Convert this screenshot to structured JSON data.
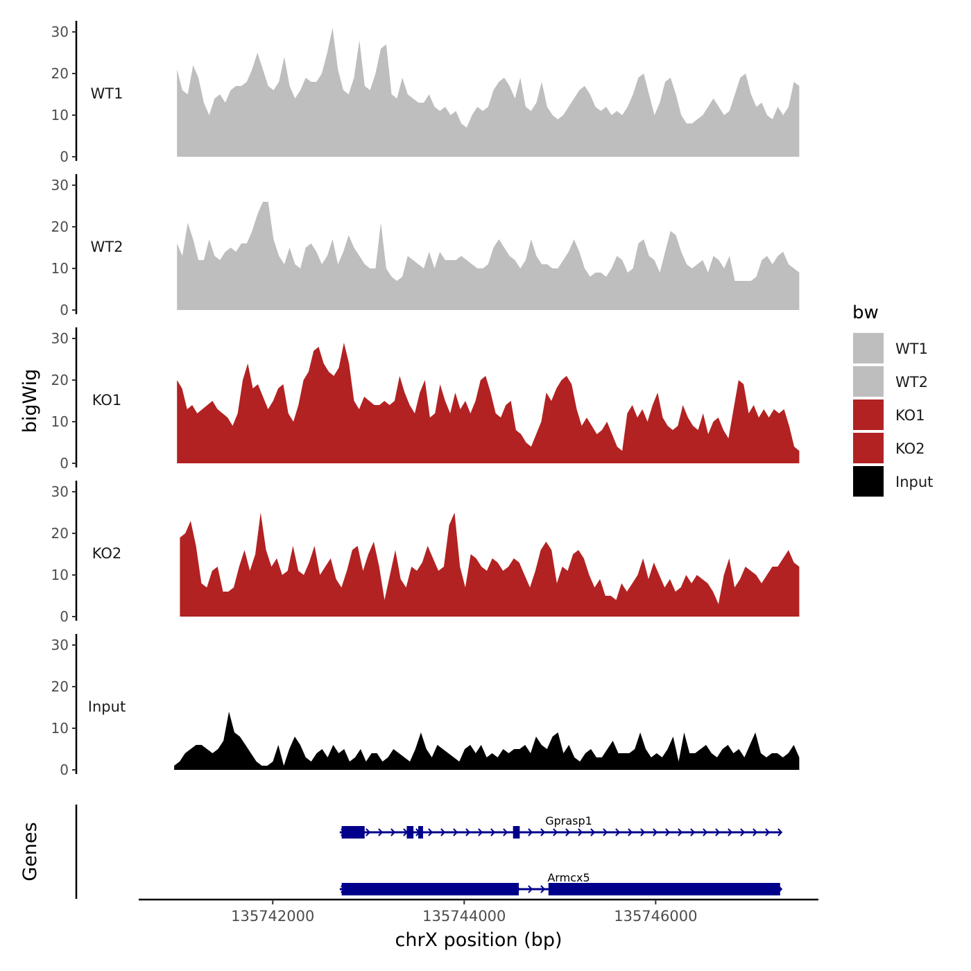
{
  "chart_data": {
    "type": "area",
    "chromosome": "chrX",
    "xlabel": "chrX position (bp)",
    "ylabel": "bigWig",
    "genes_label": "Genes",
    "xlim": [
      135740600,
      135747700
    ],
    "x_ticks": [
      135742000,
      135744000,
      135746000
    ],
    "x_tick_labels": [
      "135742000",
      "135744000",
      "135746000"
    ],
    "ylim": [
      0,
      32
    ],
    "y_ticks": [
      0,
      10,
      20,
      30
    ],
    "y_tick_labels": [
      "0",
      "10",
      "20",
      "30"
    ],
    "legend_title": "bw",
    "legend_position": "right",
    "tracks": [
      {
        "name": "WT1",
        "color": "#bebebe",
        "x_start": 135741000,
        "x_end": 135747500,
        "values": [
          21,
          16,
          15,
          22,
          19,
          13,
          10,
          14,
          15,
          13,
          16,
          17,
          17,
          18,
          21,
          25,
          21,
          17,
          16,
          18,
          24,
          17,
          14,
          16,
          19,
          18,
          18,
          20,
          25,
          31,
          21,
          16,
          15,
          19,
          28,
          17,
          16,
          20,
          26,
          27,
          15,
          14,
          19,
          15,
          14,
          13,
          13,
          15,
          12,
          11,
          12,
          10,
          11,
          8,
          7,
          10,
          12,
          11,
          12,
          16,
          18,
          19,
          17,
          14,
          19,
          12,
          11,
          13,
          18,
          12,
          10,
          9,
          10,
          12,
          14,
          16,
          17,
          15,
          12,
          11,
          12,
          10,
          11,
          10,
          12,
          15,
          19,
          20,
          15,
          10,
          13,
          18,
          19,
          15,
          10,
          8,
          8,
          9,
          10,
          12,
          14,
          12,
          10,
          11,
          15,
          19,
          20,
          15,
          12,
          13,
          10,
          9,
          12,
          10,
          12,
          18,
          17
        ]
      },
      {
        "name": "WT2",
        "color": "#bebebe",
        "x_start": 135741000,
        "x_end": 135747500,
        "values": [
          16,
          13,
          21,
          17,
          12,
          12,
          17,
          13,
          12,
          14,
          15,
          14,
          16,
          16,
          19,
          23,
          26,
          26,
          17,
          13,
          11,
          15,
          11,
          10,
          15,
          16,
          14,
          11,
          13,
          17,
          11,
          14,
          18,
          15,
          13,
          11,
          10,
          10,
          21,
          10,
          8,
          7,
          8,
          13,
          12,
          11,
          10,
          14,
          10,
          14,
          12,
          12,
          12,
          13,
          12,
          11,
          10,
          10,
          11,
          15,
          17,
          15,
          13,
          12,
          10,
          12,
          17,
          13,
          11,
          11,
          10,
          10,
          12,
          14,
          17,
          14,
          10,
          8,
          9,
          9,
          8,
          10,
          13,
          12,
          9,
          10,
          16,
          17,
          13,
          12,
          9,
          14,
          19,
          18,
          14,
          11,
          10,
          11,
          12,
          9,
          13,
          12,
          10,
          13,
          7,
          7,
          7,
          7,
          8,
          12,
          13,
          11,
          13,
          14,
          11,
          10,
          9
        ]
      },
      {
        "name": "KO1",
        "color": "#b22222",
        "x_start": 135741000,
        "x_end": 135747500,
        "values": [
          20,
          18,
          13,
          14,
          12,
          13,
          14,
          15,
          13,
          12,
          11,
          9,
          12,
          20,
          24,
          18,
          19,
          16,
          13,
          15,
          18,
          19,
          12,
          10,
          14,
          20,
          22,
          27,
          28,
          24,
          22,
          21,
          23,
          29,
          24,
          15,
          13,
          16,
          15,
          14,
          14,
          15,
          14,
          15,
          21,
          17,
          14,
          12,
          17,
          20,
          11,
          12,
          19,
          15,
          12,
          17,
          13,
          15,
          12,
          15,
          20,
          21,
          17,
          12,
          11,
          14,
          15,
          8,
          7,
          5,
          4,
          7,
          10,
          17,
          15,
          18,
          20,
          21,
          19,
          13,
          9,
          11,
          9,
          7,
          8,
          10,
          7,
          4,
          3,
          12,
          14,
          11,
          13,
          10,
          14,
          17,
          11,
          9,
          8,
          9,
          14,
          11,
          9,
          8,
          12,
          7,
          10,
          11,
          8,
          6,
          13,
          20,
          19,
          12,
          14,
          11,
          13,
          11,
          13,
          12,
          13,
          9,
          4,
          3
        ]
      },
      {
        "name": "KO2",
        "color": "#b22222",
        "x_start": 135741030,
        "x_end": 135747500,
        "values": [
          19,
          20,
          23,
          17,
          8,
          7,
          11,
          12,
          6,
          6,
          7,
          12,
          16,
          11,
          15,
          25,
          16,
          12,
          14,
          10,
          11,
          17,
          11,
          10,
          13,
          17,
          10,
          12,
          14,
          9,
          7,
          11,
          16,
          17,
          11,
          15,
          18,
          12,
          4,
          10,
          16,
          9,
          7,
          12,
          11,
          13,
          17,
          14,
          11,
          12,
          22,
          25,
          12,
          7,
          15,
          14,
          12,
          11,
          14,
          13,
          11,
          12,
          14,
          13,
          10,
          7,
          11,
          16,
          18,
          16,
          8,
          12,
          11,
          15,
          16,
          14,
          10,
          7,
          9,
          5,
          5,
          4,
          8,
          6,
          8,
          10,
          14,
          9,
          13,
          10,
          7,
          9,
          6,
          7,
          10,
          8,
          10,
          9,
          8,
          6,
          3,
          10,
          14,
          7,
          9,
          12,
          11,
          10,
          8,
          10,
          12,
          12,
          14,
          16,
          13,
          12
        ]
      },
      {
        "name": "Input",
        "color": "#000000",
        "x_start": 135740970,
        "x_end": 135747500,
        "values": [
          1,
          2,
          4,
          5,
          6,
          6,
          5,
          4,
          5,
          7,
          14,
          9,
          8,
          6,
          4,
          2,
          1,
          1,
          2,
          6,
          1,
          5,
          8,
          6,
          3,
          2,
          4,
          5,
          3,
          6,
          4,
          5,
          2,
          3,
          5,
          2,
          4,
          4,
          2,
          3,
          5,
          4,
          3,
          2,
          5,
          9,
          5,
          3,
          6,
          5,
          4,
          3,
          2,
          5,
          6,
          4,
          6,
          3,
          4,
          3,
          5,
          4,
          5,
          5,
          6,
          4,
          8,
          6,
          5,
          8,
          9,
          4,
          6,
          3,
          2,
          4,
          5,
          3,
          3,
          5,
          7,
          4,
          4,
          4,
          5,
          9,
          5,
          3,
          4,
          3,
          5,
          8,
          2,
          9,
          4,
          4,
          5,
          6,
          4,
          3,
          5,
          6,
          4,
          5,
          3,
          6,
          9,
          4,
          3,
          4,
          4,
          3,
          4,
          6,
          3
        ]
      }
    ],
    "genes": [
      {
        "name": "Gprasp1",
        "strand": "+",
        "color": "#00008b",
        "start": 135742700,
        "end": 135747310,
        "exons": [
          [
            135742720,
            135742960
          ],
          [
            135743400,
            135743470
          ],
          [
            135743520,
            135743570
          ],
          [
            135744510,
            135744580
          ]
        ]
      },
      {
        "name": "Armcx5",
        "strand": "+",
        "color": "#00008b",
        "start": 135742700,
        "end": 135747310,
        "exons": [
          [
            135742720,
            135744570
          ],
          [
            135744880,
            135747300
          ]
        ]
      }
    ]
  }
}
